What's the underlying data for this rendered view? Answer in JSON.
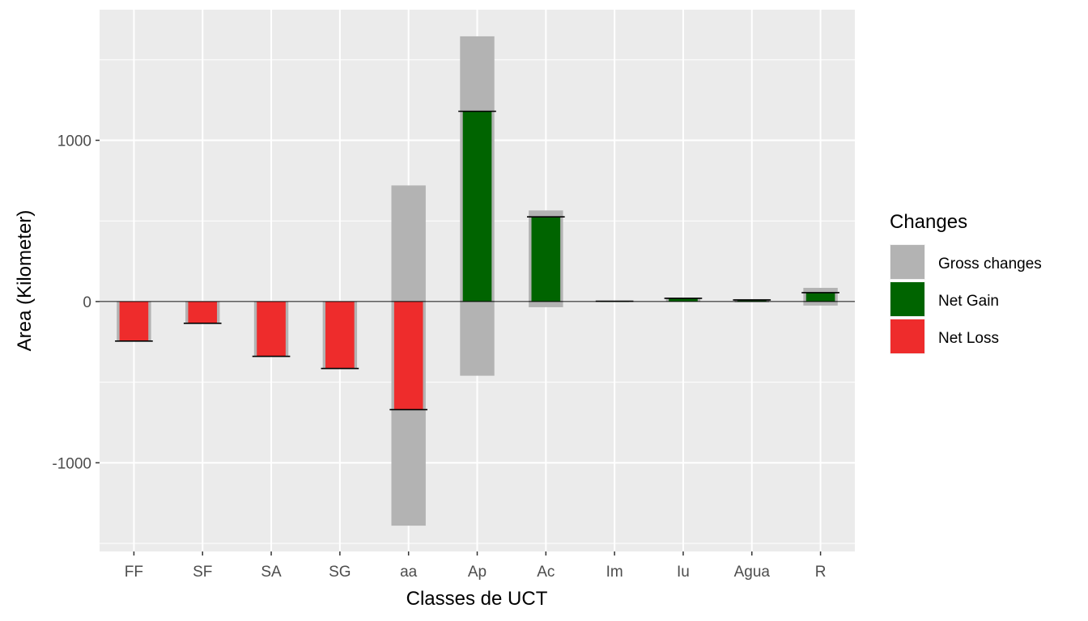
{
  "chart_data": {
    "type": "bar",
    "xlabel": "Classes de UCT",
    "ylabel": "Area (Kilometer)",
    "categories": [
      "FF",
      "SF",
      "SA",
      "SG",
      "aa",
      "Ap",
      "Ac",
      "Im",
      "Iu",
      "Agua",
      "R"
    ],
    "series": [
      {
        "name": "Gross changes",
        "color": "#b3b3b3",
        "gain": [
          0,
          0,
          0,
          0,
          720,
          1645,
          565,
          5,
          25,
          15,
          85
        ],
        "loss": [
          -245,
          -135,
          -340,
          -415,
          -1390,
          -460,
          -35,
          0,
          0,
          -5,
          -25
        ]
      },
      {
        "name": "Net Gain",
        "color": "#006400",
        "values": [
          0,
          0,
          0,
          0,
          0,
          1180,
          525,
          2,
          20,
          10,
          55
        ]
      },
      {
        "name": "Net Loss",
        "color": "#ee2c2c",
        "values": [
          -245,
          -135,
          -340,
          -415,
          -670,
          0,
          0,
          0,
          0,
          0,
          0
        ]
      }
    ],
    "ylim": [
      -1550,
      1810
    ],
    "yticks": [
      -1000,
      0,
      1000
    ],
    "ytick_labels": [
      "-1000",
      "0",
      "1000"
    ],
    "grid": true,
    "legend": {
      "title": "Changes",
      "position": "right",
      "entries": [
        "Gross changes",
        "Net Gain",
        "Net Loss"
      ]
    },
    "panel_background": "#ebebeb"
  }
}
